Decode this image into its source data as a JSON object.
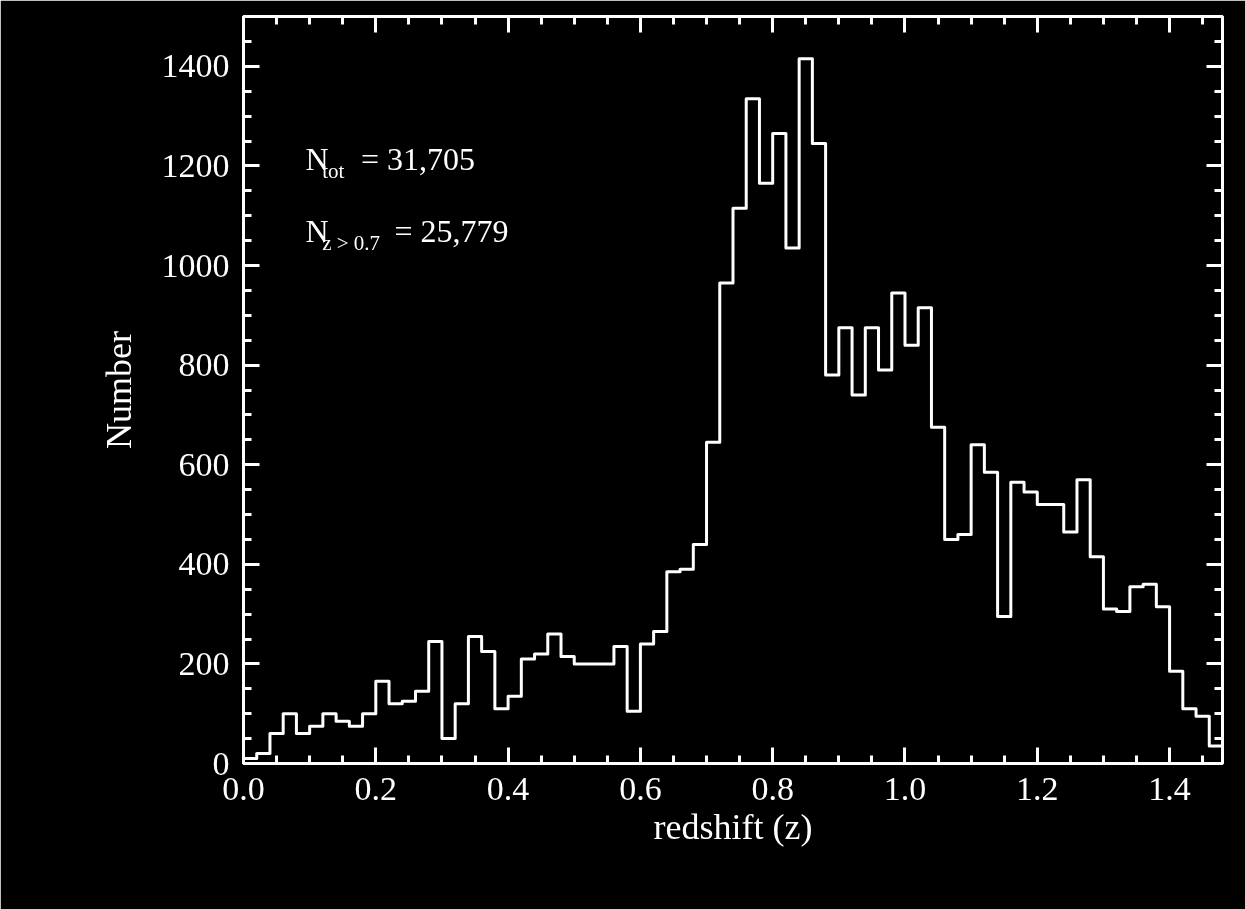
{
  "chart_data": {
    "type": "histogram",
    "xlabel": "redshift (z)",
    "ylabel": "Number",
    "annotations": [
      "N$_{tot}$ = 31,705",
      "N$_{z > 0.7}$ = 25,779"
    ],
    "color": "#ffffff",
    "bins": [
      0.0,
      0.02,
      0.04,
      0.06,
      0.08,
      0.1,
      0.12,
      0.14,
      0.16,
      0.18,
      0.2,
      0.22,
      0.24,
      0.26,
      0.28,
      0.3,
      0.32,
      0.34,
      0.36,
      0.38,
      0.4,
      0.42,
      0.44,
      0.46,
      0.48,
      0.5,
      0.52,
      0.54,
      0.56,
      0.58,
      0.6,
      0.62,
      0.64,
      0.66,
      0.68,
      0.7,
      0.72,
      0.74,
      0.76,
      0.78,
      0.8,
      0.82,
      0.84,
      0.86,
      0.88,
      0.9,
      0.92,
      0.94,
      0.96,
      0.98,
      1.0,
      1.02,
      1.04,
      1.06,
      1.08,
      1.1,
      1.12,
      1.14,
      1.16,
      1.18,
      1.2,
      1.22,
      1.24,
      1.26,
      1.28,
      1.3,
      1.32,
      1.34,
      1.36,
      1.38,
      1.4,
      1.42,
      1.44,
      1.46,
      1.48
    ],
    "values": [
      10,
      20,
      60,
      100,
      60,
      75,
      100,
      85,
      75,
      100,
      165,
      120,
      125,
      145,
      245,
      50,
      120,
      255,
      225,
      110,
      135,
      210,
      220,
      260,
      215,
      200,
      200,
      200,
      235,
      105,
      240,
      265,
      385,
      390,
      440,
      645,
      965,
      1115,
      1335,
      1165,
      1265,
      1035,
      1415,
      1245,
      780,
      875,
      740,
      875,
      790,
      945,
      840,
      915,
      675,
      450,
      460,
      640,
      585,
      295,
      565,
      545,
      520,
      520,
      465,
      570,
      415,
      310,
      305,
      355,
      360,
      315,
      185,
      110,
      95,
      35
    ],
    "xlim": [
      0,
      1.48
    ],
    "ylim": [
      0,
      1500
    ],
    "xticks": [
      {
        "value": 0,
        "label": "0.0"
      },
      0.2,
      0.4,
      0.6,
      0.8,
      {
        "value": 1,
        "label": "1.0"
      },
      1.2,
      1.4
    ],
    "yticks": [
      0,
      200,
      400,
      600,
      800,
      1000,
      1200,
      1400
    ]
  }
}
